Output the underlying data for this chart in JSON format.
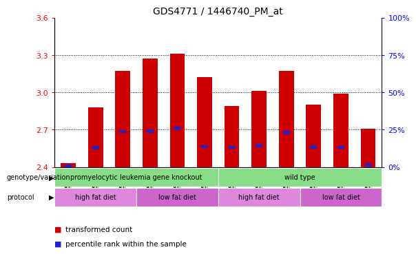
{
  "title": "GDS4771 / 1446740_PM_at",
  "samples": [
    "GSM958303",
    "GSM958304",
    "GSM958305",
    "GSM958308",
    "GSM958309",
    "GSM958310",
    "GSM958311",
    "GSM958312",
    "GSM958313",
    "GSM958302",
    "GSM958306",
    "GSM958307"
  ],
  "bar_heights": [
    2.43,
    2.88,
    3.17,
    3.27,
    3.31,
    3.12,
    2.89,
    3.01,
    3.17,
    2.9,
    2.99,
    2.71
  ],
  "blue_positions": [
    2.405,
    2.555,
    2.685,
    2.688,
    2.71,
    2.565,
    2.558,
    2.572,
    2.678,
    2.562,
    2.558,
    2.418
  ],
  "bar_bottom": 2.4,
  "ylim_left": [
    2.4,
    3.6
  ],
  "yticks_left": [
    2.4,
    2.7,
    3.0,
    3.3,
    3.6
  ],
  "ylim_right": [
    0,
    100
  ],
  "yticks_right": [
    0,
    25,
    50,
    75,
    100
  ],
  "ytick_labels_right": [
    "0%",
    "25%",
    "50%",
    "75%",
    "100%"
  ],
  "bar_color": "#cc0000",
  "blue_color": "#2222cc",
  "bar_width": 0.55,
  "grid_color": "black",
  "grid_style": "dotted",
  "grid_values": [
    2.7,
    3.0,
    3.3
  ],
  "genotype_labels": [
    {
      "text": "promyelocytic leukemia gene knockout",
      "start": 0,
      "end": 6,
      "color": "#88dd88"
    },
    {
      "text": "wild type",
      "start": 6,
      "end": 12,
      "color": "#88dd88"
    }
  ],
  "protocol_labels": [
    {
      "text": "high fat diet",
      "start": 0,
      "end": 3,
      "color": "#dd88dd"
    },
    {
      "text": "low fat diet",
      "start": 3,
      "end": 6,
      "color": "#cc66cc"
    },
    {
      "text": "high fat diet",
      "start": 6,
      "end": 9,
      "color": "#dd88dd"
    },
    {
      "text": "low fat diet",
      "start": 9,
      "end": 12,
      "color": "#cc66cc"
    }
  ],
  "left_label_genotype": "genotype/variation",
  "left_label_protocol": "protocol",
  "legend_items": [
    {
      "label": "transformed count",
      "color": "#cc0000"
    },
    {
      "label": "percentile rank within the sample",
      "color": "#2222cc"
    }
  ],
  "tick_label_bg": "#cccccc",
  "title_fontsize": 10
}
